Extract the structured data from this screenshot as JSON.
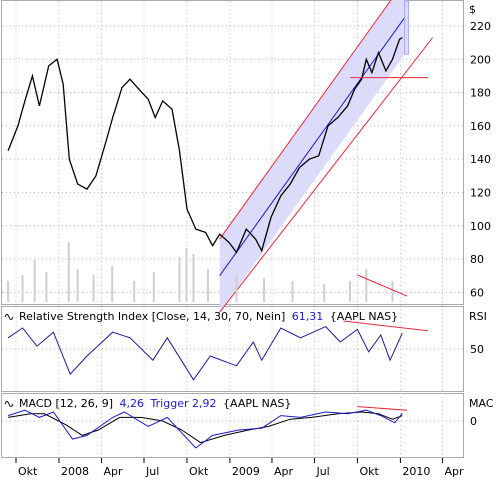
{
  "currency_label": "$",
  "chart_data": [
    {
      "type": "line",
      "name": "price",
      "y_ticks": [
        60,
        80,
        100,
        120,
        140,
        160,
        180,
        200,
        220
      ],
      "ylim": [
        53,
        235
      ],
      "x_ticks": [
        "Okt",
        "2008",
        "Apr",
        "Jul",
        "Okt",
        "2009",
        "Apr",
        "Jul",
        "Okt",
        "2010",
        "Apr"
      ],
      "xlim": [
        "2007-09-01",
        "2010-05-15"
      ],
      "series": [
        {
          "values": [
            [
              "2007-09-14",
              145
            ],
            [
              "2007-10-05",
              160
            ],
            [
              "2007-10-20",
              175
            ],
            [
              "2007-11-05",
              190
            ],
            [
              "2007-11-20",
              172
            ],
            [
              "2007-12-10",
              196
            ],
            [
              "2007-12-28",
              200
            ],
            [
              "2008-01-10",
              185
            ],
            [
              "2008-01-23",
              140
            ],
            [
              "2008-02-10",
              125
            ],
            [
              "2008-03-01",
              122
            ],
            [
              "2008-03-20",
              130
            ],
            [
              "2008-04-10",
              150
            ],
            [
              "2008-04-25",
              165
            ],
            [
              "2008-05-15",
              183
            ],
            [
              "2008-06-01",
              188
            ],
            [
              "2008-06-20",
              182
            ],
            [
              "2008-07-10",
              176
            ],
            [
              "2008-07-25",
              165
            ],
            [
              "2008-08-10",
              175
            ],
            [
              "2008-08-30",
              170
            ],
            [
              "2008-09-15",
              145
            ],
            [
              "2008-10-01",
              110
            ],
            [
              "2008-10-20",
              98
            ],
            [
              "2008-11-10",
              96
            ],
            [
              "2008-11-25",
              88
            ],
            [
              "2008-12-10",
              95
            ],
            [
              "2008-12-30",
              90
            ],
            [
              "2009-01-15",
              84
            ],
            [
              "2009-02-05",
              98
            ],
            [
              "2009-02-25",
              92
            ],
            [
              "2009-03-10",
              85
            ],
            [
              "2009-03-30",
              105
            ],
            [
              "2009-04-20",
              118
            ],
            [
              "2009-05-10",
              125
            ],
            [
              "2009-05-30",
              135
            ],
            [
              "2009-06-20",
              140
            ],
            [
              "2009-07-10",
              142
            ],
            [
              "2009-07-30",
              160
            ],
            [
              "2009-08-20",
              165
            ],
            [
              "2009-09-10",
              172
            ],
            [
              "2009-09-25",
              182
            ],
            [
              "2009-10-10",
              188
            ],
            [
              "2009-10-20",
              200
            ],
            [
              "2009-11-01",
              192
            ],
            [
              "2009-11-15",
              204
            ],
            [
              "2009-12-01",
              193
            ],
            [
              "2009-12-15",
              200
            ],
            [
              "2009-12-30",
              212
            ],
            [
              "2010-01-05",
              213
            ]
          ]
        }
      ],
      "volume": [
        [
          "2007-09-14",
          0.35
        ],
        [
          "2007-10-15",
          0.45
        ],
        [
          "2007-11-10",
          0.7
        ],
        [
          "2007-12-05",
          0.5
        ],
        [
          "2008-01-22",
          1.0
        ],
        [
          "2008-02-10",
          0.55
        ],
        [
          "2008-03-15",
          0.45
        ],
        [
          "2008-04-24",
          0.6
        ],
        [
          "2008-06-10",
          0.35
        ],
        [
          "2008-07-22",
          0.5
        ],
        [
          "2008-09-15",
          0.75
        ],
        [
          "2008-09-30",
          0.9
        ],
        [
          "2008-10-15",
          0.8
        ],
        [
          "2008-11-15",
          0.55
        ],
        [
          "2009-01-15",
          0.45
        ],
        [
          "2009-03-15",
          0.4
        ],
        [
          "2009-05-15",
          0.35
        ],
        [
          "2009-07-22",
          0.3
        ],
        [
          "2009-09-15",
          0.35
        ],
        [
          "2009-10-20",
          0.55
        ],
        [
          "2009-12-15",
          0.35
        ]
      ],
      "channel": {
        "start": [
          "2008-12-10",
          70
        ],
        "end": [
          "2010-01-10",
          225
        ],
        "half_width": 22
      },
      "support_line": {
        "from": [
          "2009-09-15",
          189
        ],
        "to": [
          "2010-03-01",
          189
        ]
      },
      "volume_divergence": {
        "from": [
          "2009-10-01",
          0.45
        ],
        "to": [
          "2010-01-15",
          0.1
        ]
      }
    },
    {
      "type": "line",
      "name": "rsi",
      "title": "Relative Strength Index [Close, 14, 30, 70, Nein]",
      "value_label": "61,31",
      "symbol": "{AAPL NAS}",
      "side_label": "RSI",
      "y_ticks": [
        50
      ],
      "ylim": [
        20,
        80
      ],
      "series": [
        {
          "values": [
            [
              "2007-09-14",
              58
            ],
            [
              "2007-10-15",
              65
            ],
            [
              "2007-11-15",
              52
            ],
            [
              "2007-12-20",
              62
            ],
            [
              "2008-01-25",
              32
            ],
            [
              "2008-03-01",
              45
            ],
            [
              "2008-04-25",
              62
            ],
            [
              "2008-06-01",
              58
            ],
            [
              "2008-07-20",
              42
            ],
            [
              "2008-08-20",
              58
            ],
            [
              "2008-10-15",
              28
            ],
            [
              "2008-11-20",
              45
            ],
            [
              "2009-01-15",
              38
            ],
            [
              "2009-02-20",
              55
            ],
            [
              "2009-03-10",
              42
            ],
            [
              "2009-04-20",
              65
            ],
            [
              "2009-06-01",
              58
            ],
            [
              "2009-07-25",
              66
            ],
            [
              "2009-08-25",
              55
            ],
            [
              "2009-10-01",
              64
            ],
            [
              "2009-10-25",
              48
            ],
            [
              "2009-11-20",
              60
            ],
            [
              "2009-12-10",
              42
            ],
            [
              "2010-01-05",
              61.31
            ]
          ]
        }
      ],
      "divergence": {
        "from": [
          "2009-09-01",
          70
        ],
        "to": [
          "2010-03-01",
          63
        ]
      }
    },
    {
      "type": "line",
      "name": "macd",
      "title": "MACD [12, 26, 9]",
      "value_label": "4,26",
      "trigger_label": "Trigger 2,92",
      "symbol": "{AAPL NAS}",
      "side_label": "MAC",
      "y_ticks": [
        0
      ],
      "ylim": [
        -20,
        15
      ],
      "series": [
        {
          "values": [
            [
              "2007-09-14",
              3
            ],
            [
              "2007-10-20",
              6
            ],
            [
              "2007-11-20",
              2
            ],
            [
              "2007-12-20",
              5
            ],
            [
              "2008-01-30",
              -10
            ],
            [
              "2008-03-01",
              -8
            ],
            [
              "2008-04-25",
              2
            ],
            [
              "2008-05-20",
              5
            ],
            [
              "2008-07-10",
              -3
            ],
            [
              "2008-08-20",
              2
            ],
            [
              "2008-10-20",
              -15
            ],
            [
              "2008-11-25",
              -8
            ],
            [
              "2009-01-20",
              -5
            ],
            [
              "2009-03-10",
              -4
            ],
            [
              "2009-04-20",
              3
            ],
            [
              "2009-06-01",
              2
            ],
            [
              "2009-07-25",
              5
            ],
            [
              "2009-09-10",
              4
            ],
            [
              "2009-10-20",
              6
            ],
            [
              "2009-11-20",
              3
            ],
            [
              "2009-12-20",
              -1
            ],
            [
              "2010-01-05",
              4.26
            ]
          ]
        },
        {
          "values": [
            [
              "2007-09-14",
              2
            ],
            [
              "2007-11-01",
              4
            ],
            [
              "2007-12-01",
              4
            ],
            [
              "2008-01-15",
              -2
            ],
            [
              "2008-02-20",
              -8
            ],
            [
              "2008-03-25",
              -5
            ],
            [
              "2008-05-10",
              2
            ],
            [
              "2008-06-25",
              2
            ],
            [
              "2008-08-10",
              0
            ],
            [
              "2008-09-20",
              -5
            ],
            [
              "2008-10-30",
              -12
            ],
            [
              "2008-12-20",
              -8
            ],
            [
              "2009-02-10",
              -5
            ],
            [
              "2009-03-25",
              -3
            ],
            [
              "2009-05-10",
              1
            ],
            [
              "2009-06-25",
              2
            ],
            [
              "2009-08-20",
              4
            ],
            [
              "2009-10-10",
              5
            ],
            [
              "2009-11-15",
              4
            ],
            [
              "2009-12-15",
              1
            ],
            [
              "2010-01-05",
              2.92
            ]
          ]
        }
      ],
      "divergence": {
        "from": [
          "2009-10-01",
          8
        ],
        "to": [
          "2010-01-15",
          6
        ]
      }
    }
  ]
}
